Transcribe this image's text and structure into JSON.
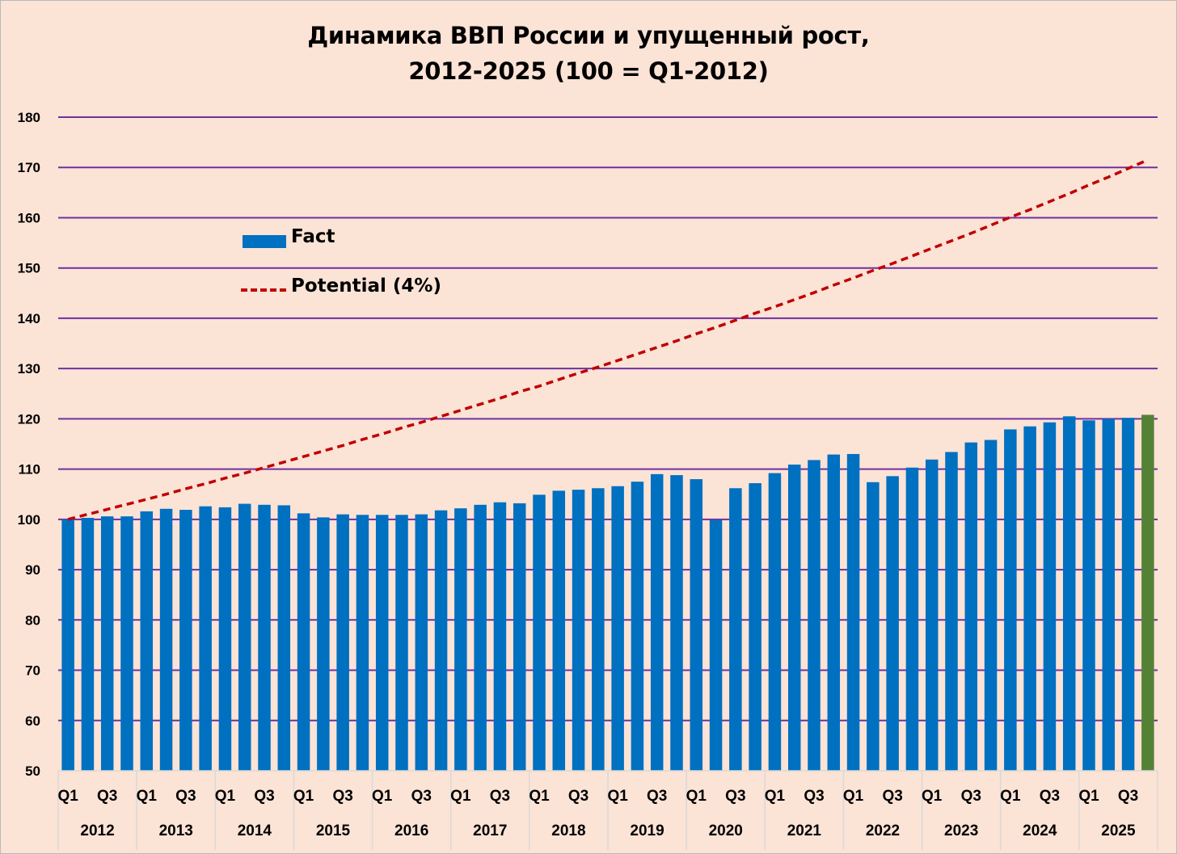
{
  "chart_data": {
    "type": "bar",
    "title": [
      "Динамика ВВП России и упущенный рост,",
      "2012-2025 (100 = Q1-2012)"
    ],
    "ylim": [
      50,
      180
    ],
    "yticks": [
      50,
      60,
      70,
      80,
      90,
      100,
      110,
      120,
      130,
      140,
      150,
      160,
      170,
      180
    ],
    "grid": true,
    "legend": [
      "Fact",
      "Potential (4%)"
    ],
    "legend_position": "upper-left",
    "years": [
      "2012",
      "2013",
      "2014",
      "2015",
      "2016",
      "2017",
      "2018",
      "2019",
      "2020",
      "2021",
      "2022",
      "2023",
      "2024",
      "2025"
    ],
    "quarter_tick_labels": [
      "Q1",
      "Q3"
    ],
    "categories": [
      "Q1 2012",
      "Q2 2012",
      "Q3 2012",
      "Q4 2012",
      "Q1 2013",
      "Q2 2013",
      "Q3 2013",
      "Q4 2013",
      "Q1 2014",
      "Q2 2014",
      "Q3 2014",
      "Q4 2014",
      "Q1 2015",
      "Q2 2015",
      "Q3 2015",
      "Q4 2015",
      "Q1 2016",
      "Q2 2016",
      "Q3 2016",
      "Q4 2016",
      "Q1 2017",
      "Q2 2017",
      "Q3 2017",
      "Q4 2017",
      "Q1 2018",
      "Q2 2018",
      "Q3 2018",
      "Q4 2018",
      "Q1 2019",
      "Q2 2019",
      "Q3 2019",
      "Q4 2019",
      "Q1 2020",
      "Q2 2020",
      "Q3 2020",
      "Q4 2020",
      "Q1 2021",
      "Q2 2021",
      "Q3 2021",
      "Q4 2021",
      "Q1 2022",
      "Q2 2022",
      "Q3 2022",
      "Q4 2022",
      "Q1 2023",
      "Q2 2023",
      "Q3 2023",
      "Q4 2023",
      "Q1 2024",
      "Q2 2024",
      "Q3 2024",
      "Q4 2024",
      "Q1 2025",
      "Q2 2025",
      "Q3 2025",
      "Q4 2025"
    ],
    "series": [
      {
        "name": "Fact",
        "type": "bar",
        "color": "#0070c0",
        "last_bar_color": "#548235",
        "values": [
          100.0,
          100.3,
          100.6,
          100.6,
          101.6,
          102.1,
          101.9,
          102.6,
          102.4,
          103.1,
          102.9,
          102.8,
          101.2,
          100.4,
          101.0,
          100.9,
          100.9,
          100.9,
          101.0,
          101.8,
          102.2,
          102.9,
          103.4,
          103.2,
          104.9,
          105.7,
          105.9,
          106.2,
          106.6,
          107.5,
          109.0,
          108.8,
          108.0,
          99.9,
          106.2,
          107.2,
          109.2,
          110.9,
          111.8,
          112.9,
          113.0,
          107.4,
          108.6,
          110.3,
          111.9,
          113.4,
          115.3,
          115.8,
          117.9,
          118.5,
          119.3,
          120.5,
          119.7,
          120.0,
          120.2,
          120.8
        ]
      },
      {
        "name": "Potential (4%)",
        "type": "line",
        "style": "dashed",
        "color": "#c00000",
        "start_value": 100,
        "annual_growth": 0.04,
        "values": [
          100.0,
          101.0,
          102.0,
          103.0,
          104.0,
          105.0,
          106.1,
          107.1,
          108.2,
          109.2,
          110.3,
          111.4,
          112.5,
          113.6,
          114.7,
          115.9,
          117.0,
          118.2,
          119.3,
          120.5,
          121.7,
          122.9,
          124.1,
          125.4,
          126.5,
          127.8,
          129.1,
          130.3,
          131.6,
          132.9,
          134.2,
          135.5,
          136.9,
          138.2,
          139.6,
          141.0,
          142.3,
          143.7,
          145.1,
          146.6,
          148.0,
          149.5,
          150.9,
          152.4,
          153.9,
          155.4,
          156.9,
          158.5,
          160.1,
          161.6,
          163.2,
          164.8,
          166.5,
          168.1,
          169.8,
          171.5
        ]
      }
    ]
  }
}
